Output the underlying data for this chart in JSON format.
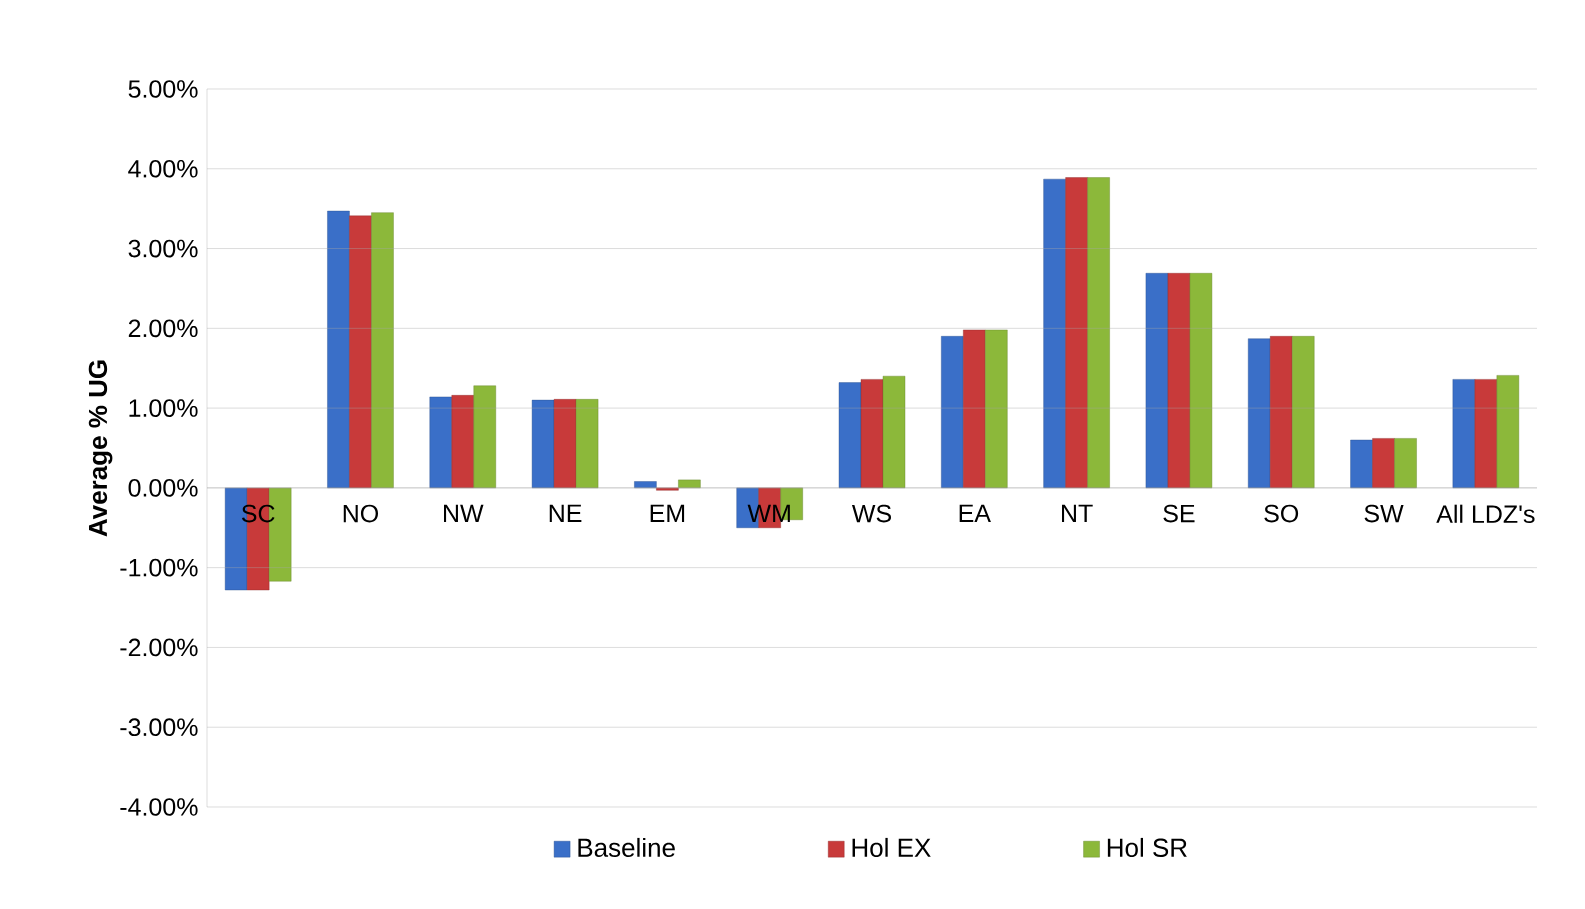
{
  "chart_data": {
    "type": "bar",
    "ylabel": "Average % UG",
    "categories": [
      "SC",
      "NO",
      "NW",
      "NE",
      "EM",
      "WM",
      "WS",
      "EA",
      "NT",
      "SE",
      "SO",
      "SW",
      "All LDZ's"
    ],
    "series": [
      {
        "name": "Baseline",
        "color": "#3a6fc8",
        "values": [
          -1.28,
          3.47,
          1.14,
          1.1,
          0.08,
          -0.5,
          1.32,
          1.9,
          3.87,
          2.69,
          1.87,
          0.6,
          1.36
        ]
      },
      {
        "name": "Hol EX",
        "color": "#c83a3a",
        "values": [
          -1.28,
          3.41,
          1.16,
          1.11,
          -0.03,
          -0.5,
          1.36,
          1.98,
          3.89,
          2.69,
          1.9,
          0.62,
          1.36
        ]
      },
      {
        "name": "Hol SR",
        "color": "#8cb83a",
        "values": [
          -1.17,
          3.45,
          1.28,
          1.11,
          0.1,
          -0.4,
          1.4,
          1.98,
          3.89,
          2.69,
          1.9,
          0.62,
          1.41
        ]
      }
    ],
    "ylim": [
      -4,
      5
    ],
    "yticks": [
      {
        "value": -4,
        "label": "-4.00%"
      },
      {
        "value": -3,
        "label": "-3.00%"
      },
      {
        "value": -2,
        "label": "-2.00%"
      },
      {
        "value": -1,
        "label": "-1.00%"
      },
      {
        "value": 0,
        "label": "0.00%"
      },
      {
        "value": 1,
        "label": "1.00%"
      },
      {
        "value": 2,
        "label": "2.00%"
      },
      {
        "value": 3,
        "label": "3.00%"
      },
      {
        "value": 4,
        "label": "4.00%"
      },
      {
        "value": 5,
        "label": "5.00%"
      }
    ],
    "grid": "y",
    "legend": "bottom"
  }
}
